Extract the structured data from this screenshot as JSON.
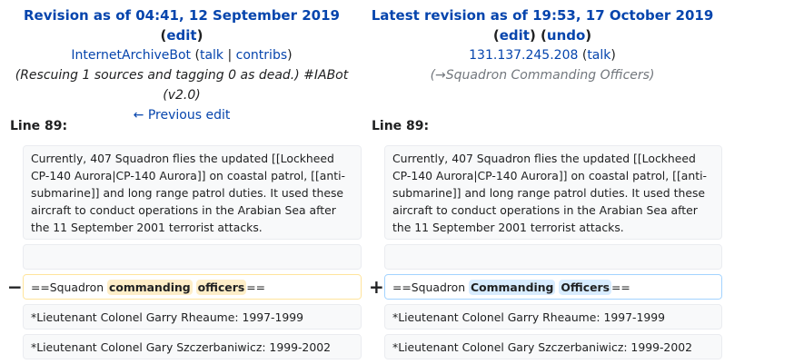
{
  "left_header": {
    "title": "Revision as of 04:41, 12 September 2019",
    "edit_label": "edit",
    "user": "InternetArchiveBot",
    "talk_label": "talk",
    "separator": "|",
    "contribs_label": "contribs",
    "summary_line1": "(Rescuing 1 sources and tagging 0 as dead.) #IABot",
    "summary_line2": "(v2.0)",
    "previous_edit": "← Previous edit"
  },
  "right_header": {
    "title": "Latest revision as of 19:53, 17 October 2019",
    "edit_label": "edit",
    "undo_label": "undo",
    "user": "131.137.245.208",
    "talk_label": "talk",
    "summary": "(→Squadron Commanding Officers)"
  },
  "left_line": "Line 89:",
  "right_line": "Line 89:",
  "context_text": "Currently, 407 Squadron flies the updated [[Lockheed CP-140 Aurora|CP-140 Aurora]] on coastal patrol, [[anti-submarine]] and long range patrol duties.  It used these aircraft to conduct operations in the Arabian Sea after the 11 September 2001 terrorist attacks.",
  "removed_marker": "−",
  "added_marker": "+",
  "removed": {
    "prefix": "==Squadron ",
    "word1": "commanding",
    "word2": "officers",
    "suffix": "=="
  },
  "added": {
    "prefix": "==Squadron ",
    "word1": "Commanding",
    "word2": "Officers",
    "suffix": "=="
  },
  "row1_text": "*Lieutenant Colonel Garry Rheaume: 1997-1999",
  "row2_text": "*Lieutenant Colonel Gary Szczerbaniwicz: 1999-2002"
}
